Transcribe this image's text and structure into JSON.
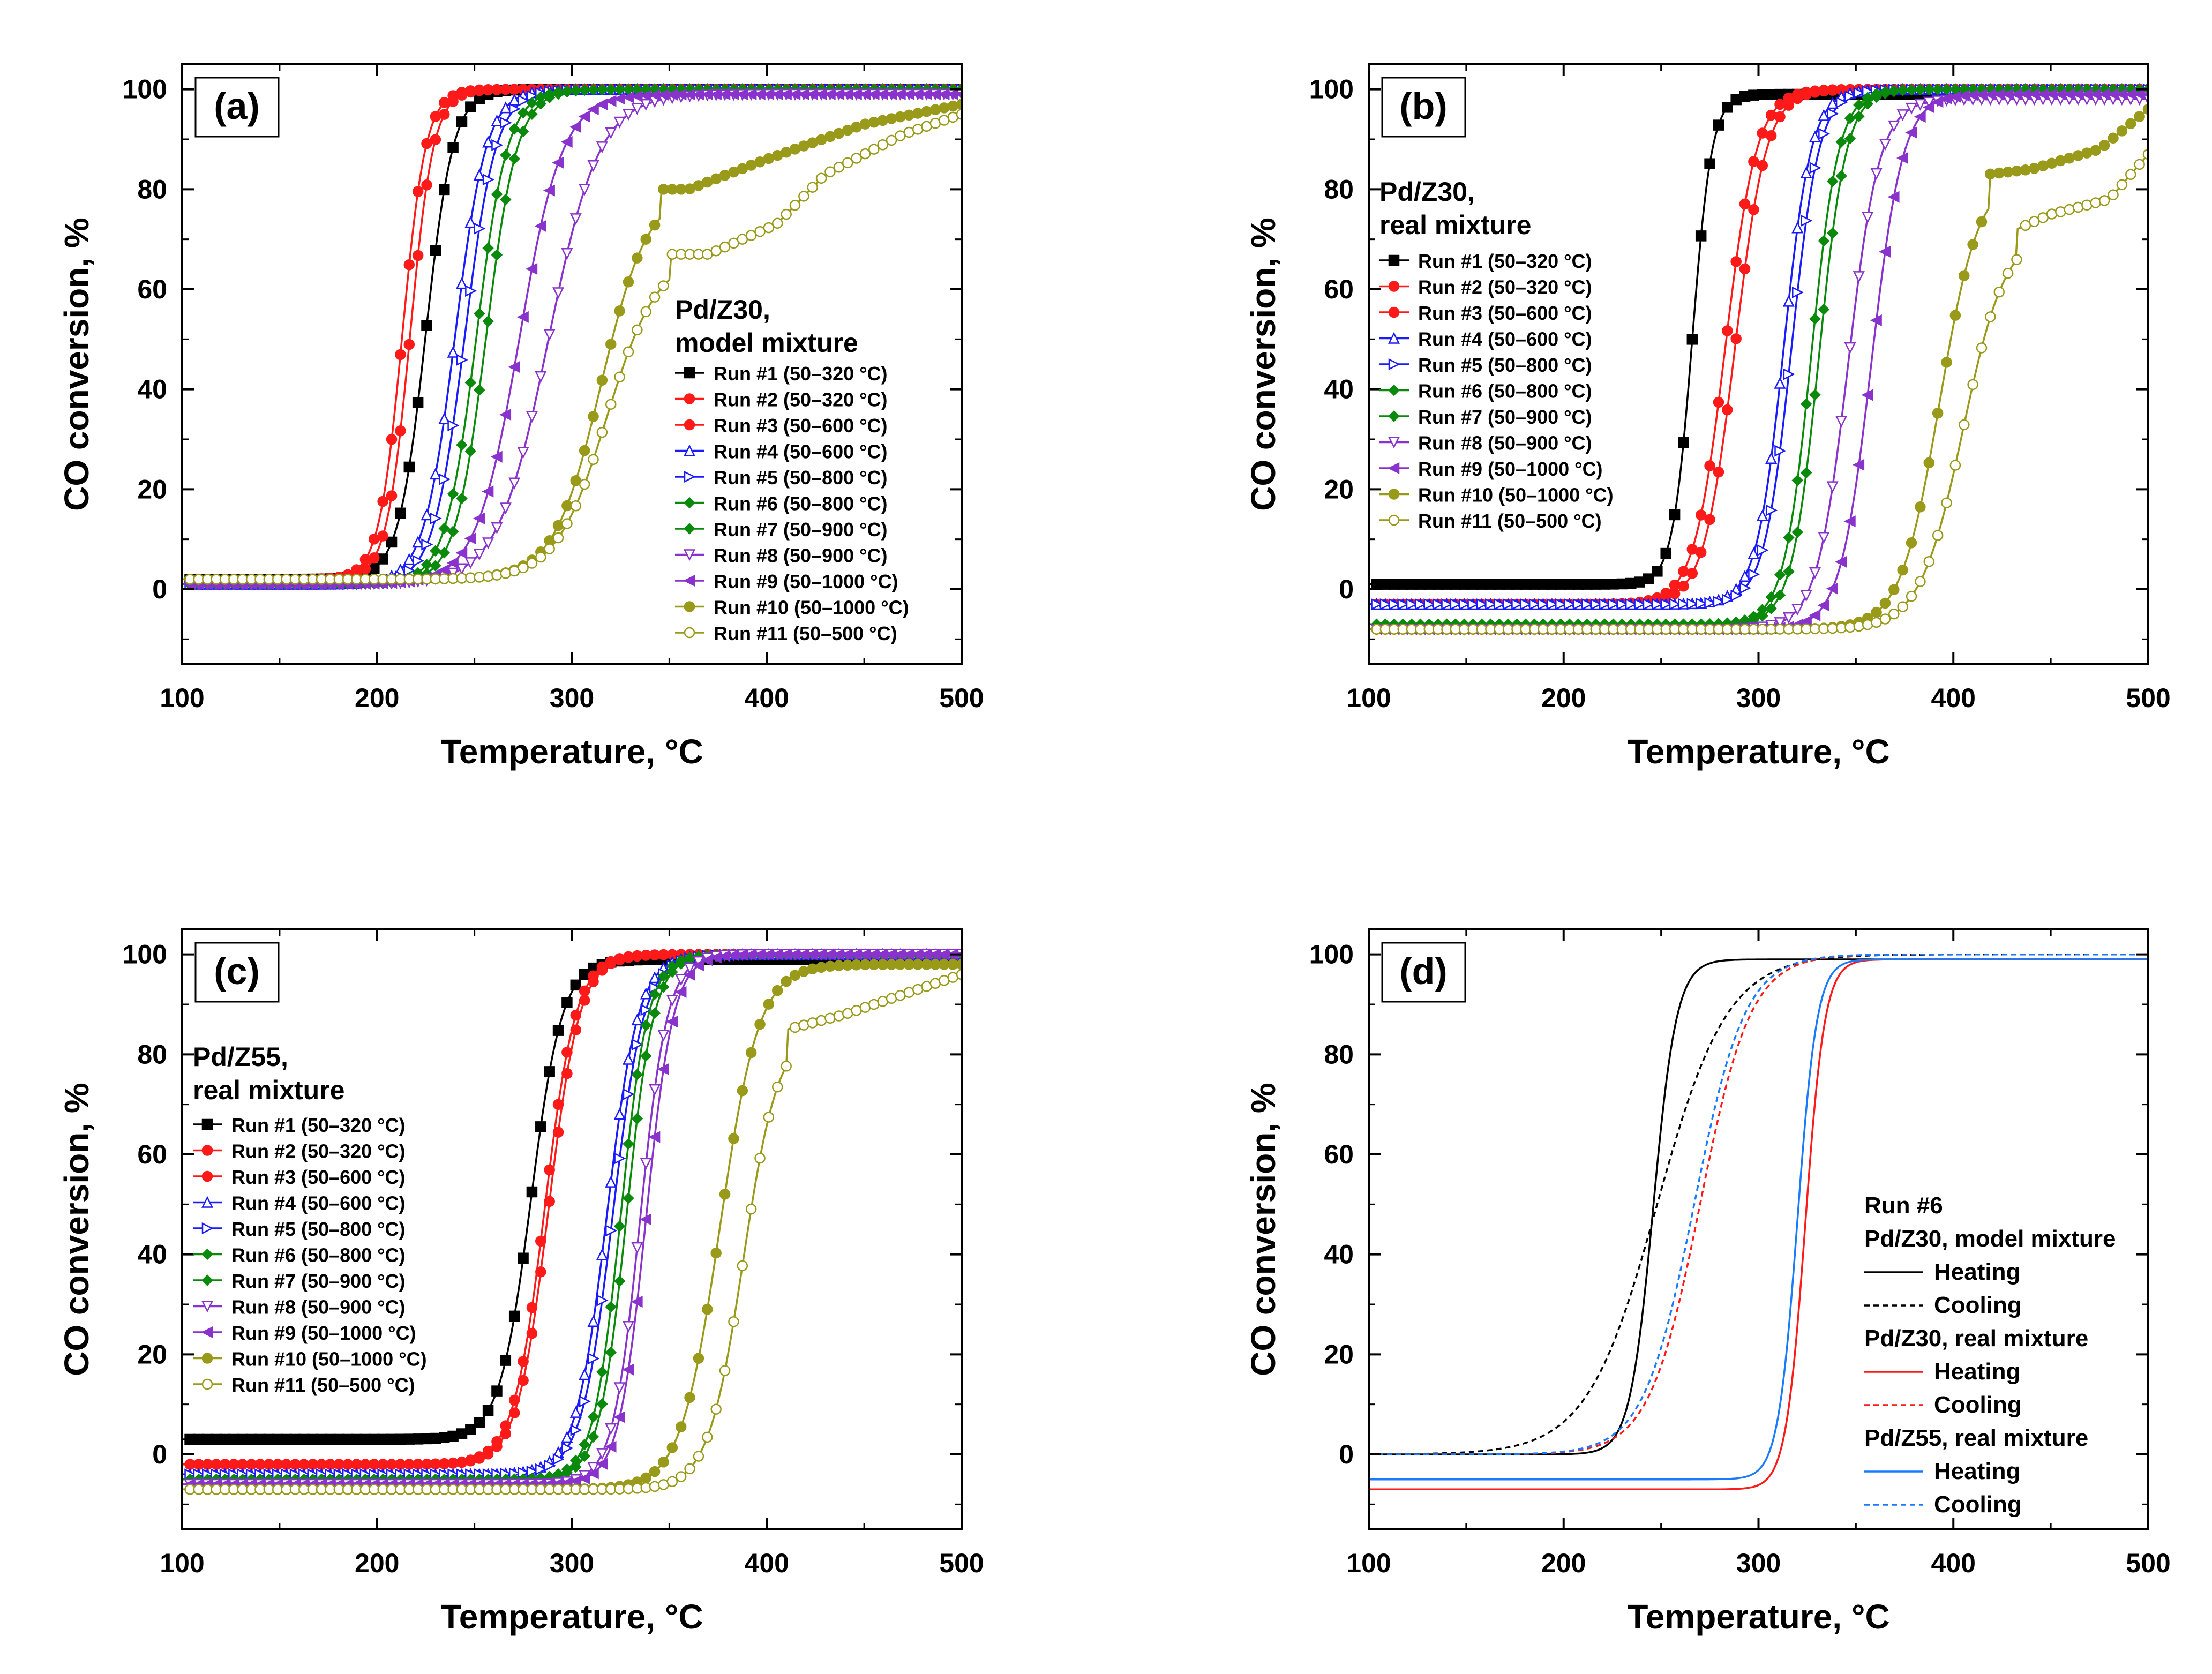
{
  "colors": {
    "black": "#000000",
    "red": "#ff1a1a",
    "blue": "#1a1aff",
    "green": "#0a8a0a",
    "purple": "#8a33cc",
    "olive": "#9a9a1a",
    "blue_light": "#1a7aff"
  },
  "chart_data": [
    {
      "type": "line",
      "panel_label": "(a)",
      "xlabel": "Temperature, °C",
      "ylabel": "CO conversion, %",
      "xlim": [
        100,
        500
      ],
      "ylim": [
        -15,
        105
      ],
      "xticks": [
        "100",
        "200",
        "300",
        "400",
        "500"
      ],
      "yticks": [
        "0",
        "20",
        "40",
        "60",
        "80",
        "100"
      ],
      "legend_title": [
        "Pd/Z30,",
        "model mixture"
      ],
      "series": [
        {
          "name": "Run #1 (50–320 °C)",
          "color": "black",
          "marker": "square",
          "T50": 225,
          "width": 7,
          "base": 2,
          "final": 100
        },
        {
          "name": "Run #2 (50–320 °C)",
          "color": "red",
          "marker": "circle-left",
          "T50": 213,
          "width": 6,
          "base": 2,
          "final": 100
        },
        {
          "name": "Run #3 (50–600 °C)",
          "color": "red",
          "marker": "circle-right",
          "T50": 217,
          "width": 6,
          "base": 2,
          "final": 100
        },
        {
          "name": "Run #4 (50–600 °C)",
          "color": "blue",
          "marker": "triangle-up",
          "T50": 240,
          "width": 8,
          "base": 1,
          "final": 100
        },
        {
          "name": "Run #5 (50–800 °C)",
          "color": "blue",
          "marker": "triangle-right",
          "T50": 245,
          "width": 8,
          "base": 1,
          "final": 100
        },
        {
          "name": "Run #6 (50–800 °C)",
          "color": "green",
          "marker": "diamond-left",
          "T50": 251,
          "width": 8,
          "base": 1,
          "final": 100
        },
        {
          "name": "Run #7 (50–900 °C)",
          "color": "green",
          "marker": "diamond-right",
          "T50": 256,
          "width": 8,
          "base": 1,
          "final": 100
        },
        {
          "name": "Run #8 (50–900 °C)",
          "color": "purple",
          "marker": "triangle-down",
          "T50": 288,
          "width": 13,
          "base": 1,
          "final": 99
        },
        {
          "name": "Run #9 (50–1000 °C)",
          "color": "purple",
          "marker": "triangle-left",
          "T50": 273,
          "width": 11,
          "base": 1,
          "final": 99
        },
        {
          "name": "Run #10 (50–1000 °C)",
          "color": "olive",
          "marker": "hex",
          "T50": 315,
          "width": 12,
          "base": 2,
          "final": 80,
          "tail": [
            [
              360,
              80
            ],
            [
              400,
              86
            ],
            [
              450,
              93
            ],
            [
              500,
              97
            ]
          ]
        },
        {
          "name": "Run #11 (50–500 °C)",
          "color": "olive",
          "marker": "circle-open",
          "T50": 318,
          "width": 13,
          "base": 2,
          "final": 67,
          "tail": [
            [
              370,
              67
            ],
            [
              405,
              73
            ],
            [
              430,
              83
            ],
            [
              470,
              91
            ],
            [
              500,
              95
            ]
          ]
        }
      ]
    },
    {
      "type": "line",
      "panel_label": "(b)",
      "xlabel": "Temperature, °C",
      "ylabel": "CO conversion, %",
      "xlim": [
        100,
        500
      ],
      "ylim": [
        -15,
        105
      ],
      "xticks": [
        "100",
        "200",
        "300",
        "400",
        "500"
      ],
      "yticks": [
        "0",
        "20",
        "40",
        "60",
        "80",
        "100"
      ],
      "legend_title": [
        "Pd/Z30,",
        "real mixture"
      ],
      "series": [
        {
          "name": "Run #1 (50–320 °C)",
          "color": "black",
          "marker": "square",
          "T50": 266,
          "width": 5,
          "base": 1,
          "final": 99
        },
        {
          "name": "Run #2 (50–320 °C)",
          "color": "red",
          "marker": "circle-left",
          "T50": 283,
          "width": 8,
          "base": -3,
          "final": 100
        },
        {
          "name": "Run #3 (50–600 °C)",
          "color": "red",
          "marker": "circle-right",
          "T50": 288,
          "width": 8,
          "base": -3,
          "final": 100
        },
        {
          "name": "Run #4 (50–600 °C)",
          "color": "blue",
          "marker": "triangle-up",
          "T50": 313,
          "width": 7,
          "base": -3,
          "final": 100
        },
        {
          "name": "Run #5 (50–800 °C)",
          "color": "blue",
          "marker": "triangle-right",
          "T50": 317,
          "width": 7,
          "base": -3,
          "final": 100
        },
        {
          "name": "Run #6 (50–800 °C)",
          "color": "green",
          "marker": "diamond-left",
          "T50": 327,
          "width": 7,
          "base": -7,
          "final": 100
        },
        {
          "name": "Run #7 (50–900 °C)",
          "color": "green",
          "marker": "diamond-right",
          "T50": 331,
          "width": 7,
          "base": -7,
          "final": 100
        },
        {
          "name": "Run #8 (50–900 °C)",
          "color": "purple",
          "marker": "triangle-down",
          "T50": 346,
          "width": 8,
          "base": -8,
          "final": 98
        },
        {
          "name": "Run #9 (50–1000 °C)",
          "color": "purple",
          "marker": "triangle-left",
          "T50": 358,
          "width": 8,
          "base": -8,
          "final": 99
        },
        {
          "name": "Run #10 (50–1000 °C)",
          "color": "olive",
          "marker": "hex",
          "T50": 393,
          "width": 10,
          "base": -8,
          "final": 83,
          "tail": [
            [
              440,
              84
            ],
            [
              475,
              88
            ],
            [
              500,
              96
            ]
          ]
        },
        {
          "name": "Run #11 (50–500 °C)",
          "color": "olive",
          "marker": "circle-open",
          "T50": 405,
          "width": 11,
          "base": -8,
          "final": 72,
          "tail": [
            [
              450,
              75
            ],
            [
              480,
              78
            ],
            [
              500,
              87
            ]
          ]
        }
      ]
    },
    {
      "type": "line",
      "panel_label": "(c)",
      "xlabel": "Temperature, °C",
      "ylabel": "CO conversion, %",
      "xlim": [
        100,
        500
      ],
      "ylim": [
        -15,
        105
      ],
      "xticks": [
        "100",
        "200",
        "300",
        "400",
        "500"
      ],
      "yticks": [
        "0",
        "20",
        "40",
        "60",
        "80",
        "100"
      ],
      "legend_title": [
        "Pd/Z55,",
        "real mixture"
      ],
      "series": [
        {
          "name": "Run #1 (50–320 °C)",
          "color": "black",
          "marker": "square",
          "T50": 279,
          "width": 8,
          "base": 3,
          "final": 99
        },
        {
          "name": "Run #2 (50–320 °C)",
          "color": "red",
          "marker": "circle-left",
          "T50": 286,
          "width": 8,
          "base": -2,
          "final": 100
        },
        {
          "name": "Run #3 (50–600 °C)",
          "color": "red",
          "marker": "circle-right",
          "T50": 288,
          "width": 8,
          "base": -2,
          "final": 100
        },
        {
          "name": "Run #4 (50–600 °C)",
          "color": "blue",
          "marker": "triangle-up",
          "T50": 318,
          "width": 8,
          "base": -4,
          "final": 100
        },
        {
          "name": "Run #5 (50–800 °C)",
          "color": "blue",
          "marker": "triangle-right",
          "T50": 321,
          "width": 8,
          "base": -4,
          "final": 100
        },
        {
          "name": "Run #6 (50–800 °C)",
          "color": "green",
          "marker": "diamond-left",
          "T50": 325,
          "width": 7,
          "base": -5,
          "final": 100
        },
        {
          "name": "Run #7 (50–900 °C)",
          "color": "green",
          "marker": "diamond-right",
          "T50": 328,
          "width": 7,
          "base": -5,
          "final": 100
        },
        {
          "name": "Run #8 (50–900 °C)",
          "color": "purple",
          "marker": "triangle-down",
          "T50": 335,
          "width": 7,
          "base": -6,
          "final": 100
        },
        {
          "name": "Run #9 (50–1000 °C)",
          "color": "purple",
          "marker": "triangle-left",
          "T50": 338,
          "width": 7,
          "base": -6,
          "final": 100
        },
        {
          "name": "Run #10 (50–1000 °C)",
          "color": "olive",
          "marker": "hex",
          "T50": 376,
          "width": 10,
          "base": -7,
          "final": 98
        },
        {
          "name": "Run #11 (50–500 °C)",
          "color": "olive",
          "marker": "circle-open",
          "T50": 388,
          "width": 9,
          "base": -7,
          "final": 85,
          "tail": [
            [
              440,
              88
            ],
            [
              470,
              92
            ],
            [
              500,
              96
            ]
          ]
        }
      ]
    },
    {
      "type": "line",
      "panel_label": "(d)",
      "xlabel": "Temperature, °C",
      "ylabel": "CO conversion, %",
      "xlim": [
        100,
        500
      ],
      "ylim": [
        -15,
        105
      ],
      "xticks": [
        "100",
        "200",
        "300",
        "400",
        "500"
      ],
      "yticks": [
        "0",
        "20",
        "40",
        "60",
        "80",
        "100"
      ],
      "legend_title": [
        "Run #6"
      ],
      "legend_groups": [
        {
          "title": "Pd/Z30, model mixture",
          "entries": [
            {
              "name": "Heating",
              "color": "black",
              "dash": false
            },
            {
              "name": "Cooling",
              "color": "black",
              "dash": true
            }
          ]
        },
        {
          "title": "Pd/Z30, real mixture",
          "entries": [
            {
              "name": "Heating",
              "color": "red",
              "dash": false
            },
            {
              "name": "Cooling",
              "color": "red",
              "dash": true
            }
          ]
        },
        {
          "title": "Pd/Z55, real mixture",
          "entries": [
            {
              "name": "Heating",
              "color": "blue_light",
              "dash": false
            },
            {
              "name": "Cooling",
              "color": "blue_light",
              "dash": true
            }
          ]
        }
      ],
      "series": [
        {
          "name": "Pd/Z30, model mixture – Heating",
          "color": "black",
          "dash": false,
          "T50": 246,
          "width": 6,
          "base": 0,
          "final": 99
        },
        {
          "name": "Pd/Z30, model mixture – Cooling",
          "color": "black",
          "dash": true,
          "T50": 248,
          "width": 18,
          "base": 0,
          "final": 100
        },
        {
          "name": "Pd/Z30, real mixture – Heating",
          "color": "red",
          "dash": false,
          "T50": 324,
          "width": 5,
          "base": -7,
          "final": 99
        },
        {
          "name": "Pd/Z30, real mixture – Cooling",
          "color": "red",
          "dash": true,
          "T50": 270,
          "width": 13,
          "base": 0,
          "final": 100
        },
        {
          "name": "Pd/Z55, real mixture – Heating",
          "color": "blue_light",
          "dash": false,
          "T50": 320,
          "width": 5,
          "base": -5,
          "final": 99
        },
        {
          "name": "Pd/Z55, real mixture – Cooling",
          "color": "blue_light",
          "dash": true,
          "T50": 267,
          "width": 13,
          "base": 0,
          "final": 100
        }
      ]
    }
  ]
}
